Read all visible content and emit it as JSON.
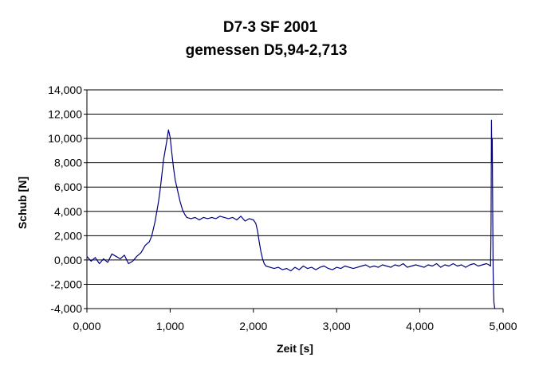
{
  "chart_data": {
    "type": "line",
    "title": "D7-3 SF 2001",
    "subtitle": "gemessen D5,94-2,713",
    "xlabel": "Zeit [s]",
    "ylabel": "Schub [N]",
    "xlim": [
      0,
      5
    ],
    "ylim": [
      -4,
      14
    ],
    "xticks": [
      0,
      1,
      2,
      3,
      4,
      5
    ],
    "yticks": [
      -4,
      -2,
      0,
      2,
      4,
      6,
      8,
      10,
      12,
      14
    ],
    "xtick_labels": [
      "0,000",
      "1,000",
      "2,000",
      "3,000",
      "4,000",
      "5,000"
    ],
    "ytick_labels": [
      "-4,000",
      "-2,000",
      "0,000",
      "2,000",
      "4,000",
      "6,000",
      "8,000",
      "10,000",
      "12,000",
      "14,000"
    ],
    "grid": "horizontal",
    "line_color": "#000080",
    "series": [
      {
        "x": [
          0.0,
          0.05,
          0.1,
          0.15,
          0.2,
          0.25,
          0.3,
          0.35,
          0.4,
          0.45,
          0.5,
          0.55,
          0.6,
          0.65,
          0.7,
          0.75,
          0.78,
          0.8,
          0.82,
          0.84,
          0.86,
          0.88,
          0.9,
          0.92,
          0.94,
          0.96,
          0.98,
          1.0,
          1.02,
          1.04,
          1.06,
          1.08,
          1.1,
          1.12,
          1.15,
          1.18,
          1.2,
          1.25,
          1.3,
          1.35,
          1.4,
          1.45,
          1.5,
          1.55,
          1.6,
          1.65,
          1.7,
          1.75,
          1.8,
          1.85,
          1.9,
          1.95,
          2.0,
          2.03,
          2.05,
          2.07,
          2.09,
          2.11,
          2.13,
          2.15,
          2.2,
          2.25,
          2.3,
          2.35,
          2.4,
          2.45,
          2.5,
          2.55,
          2.6,
          2.65,
          2.7,
          2.75,
          2.8,
          2.85,
          2.9,
          2.95,
          3.0,
          3.05,
          3.1,
          3.15,
          3.2,
          3.25,
          3.3,
          3.35,
          3.4,
          3.45,
          3.5,
          3.55,
          3.6,
          3.65,
          3.7,
          3.75,
          3.8,
          3.85,
          3.9,
          3.95,
          4.0,
          4.05,
          4.1,
          4.15,
          4.2,
          4.25,
          4.3,
          4.35,
          4.4,
          4.45,
          4.5,
          4.55,
          4.6,
          4.65,
          4.7,
          4.75,
          4.8,
          4.83,
          4.85,
          4.855,
          4.86,
          4.865,
          4.87,
          4.875,
          4.88,
          4.885,
          4.89,
          4.9
        ],
        "y": [
          0.3,
          -0.1,
          0.2,
          -0.3,
          0.1,
          -0.2,
          0.5,
          0.3,
          0.1,
          0.4,
          -0.3,
          -0.1,
          0.3,
          0.6,
          1.2,
          1.5,
          2.0,
          2.6,
          3.2,
          4.0,
          4.8,
          5.8,
          7.0,
          8.2,
          9.0,
          9.8,
          10.7,
          10.1,
          8.8,
          7.6,
          6.6,
          6.0,
          5.4,
          4.8,
          4.1,
          3.7,
          3.5,
          3.4,
          3.5,
          3.3,
          3.5,
          3.4,
          3.5,
          3.4,
          3.6,
          3.5,
          3.4,
          3.5,
          3.3,
          3.6,
          3.2,
          3.4,
          3.3,
          3.0,
          2.4,
          1.5,
          0.7,
          0.1,
          -0.3,
          -0.5,
          -0.6,
          -0.7,
          -0.6,
          -0.8,
          -0.7,
          -0.9,
          -0.6,
          -0.8,
          -0.5,
          -0.7,
          -0.6,
          -0.8,
          -0.6,
          -0.5,
          -0.7,
          -0.8,
          -0.6,
          -0.7,
          -0.5,
          -0.6,
          -0.7,
          -0.6,
          -0.5,
          -0.4,
          -0.6,
          -0.5,
          -0.6,
          -0.4,
          -0.5,
          -0.6,
          -0.4,
          -0.5,
          -0.3,
          -0.6,
          -0.5,
          -0.4,
          -0.5,
          -0.6,
          -0.4,
          -0.5,
          -0.3,
          -0.6,
          -0.4,
          -0.5,
          -0.3,
          -0.5,
          -0.4,
          -0.6,
          -0.4,
          -0.3,
          -0.5,
          -0.4,
          -0.3,
          -0.4,
          -0.5,
          3.0,
          11.5,
          8.0,
          10.0,
          3.5,
          -1.0,
          -2.5,
          -3.5,
          -4.0
        ]
      }
    ]
  }
}
